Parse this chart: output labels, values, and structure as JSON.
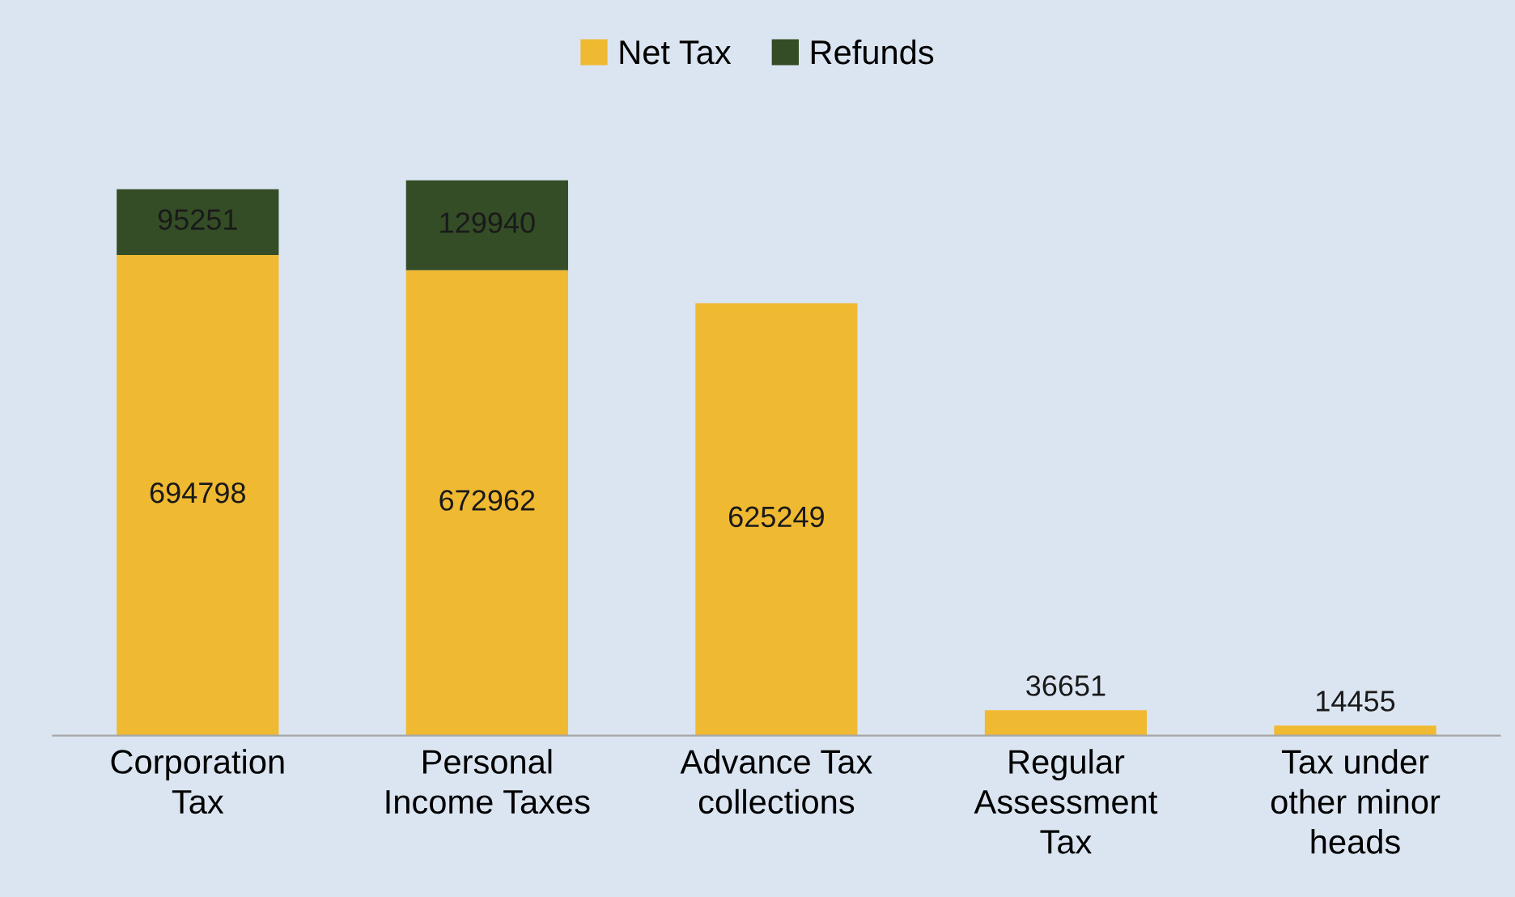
{
  "chart_data": {
    "type": "bar",
    "stacked": true,
    "data_labels": true,
    "legend": "top",
    "grid": false,
    "categories": [
      "Corporation\nTax",
      "Personal\nIncome Taxes",
      "Advance Tax\ncollections",
      "Regular\nAssessment\nTax",
      "Tax under\nother minor\nheads"
    ],
    "series": [
      {
        "name": "Net Tax",
        "color": "#f0b932",
        "values": [
          694798,
          672962,
          625249,
          36651,
          14455
        ]
      },
      {
        "name": "Refunds",
        "color": "#344d26",
        "values": [
          95251,
          129940,
          null,
          null,
          null
        ]
      }
    ]
  }
}
